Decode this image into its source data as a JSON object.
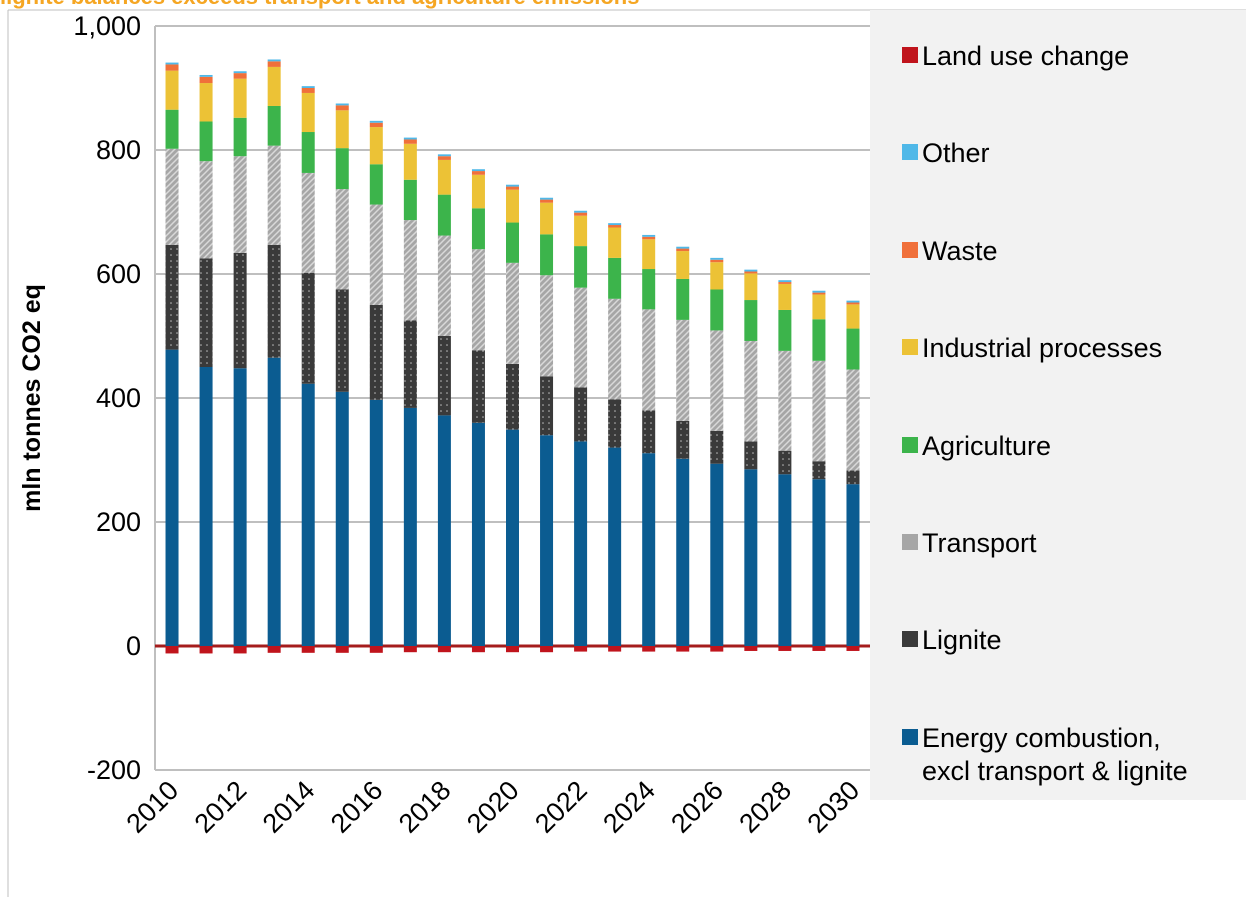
{
  "chart_data": {
    "type": "stacked_bar",
    "title": "lignite balances exceeds transport and agriculture emissions",
    "y_label": "mln tonnes CO2 eq",
    "categories": [
      "2010",
      null,
      "2012",
      null,
      "2014",
      null,
      "2016",
      null,
      "2018",
      null,
      "2020",
      null,
      "2022",
      null,
      "2024",
      null,
      "2026",
      null,
      "2028",
      null,
      "2030"
    ],
    "ylim": [
      -200,
      1000
    ],
    "yticks": [
      -200,
      0,
      200,
      400,
      600,
      800,
      {
        "value": 1000,
        "label": "1,000"
      }
    ],
    "grid": true,
    "series": [
      {
        "name": "Energy combustion,\nexcl transport & lignite",
        "color": "#0b5c91",
        "values": [
          478,
          450,
          448,
          465,
          423,
          410,
          397,
          384,
          372,
          360,
          349,
          340,
          330,
          320,
          311,
          302,
          294,
          285,
          277,
          269,
          261
        ]
      },
      {
        "name": "Lignite",
        "color": "#3a3a3a",
        "values": [
          169,
          175,
          186,
          182,
          179,
          165,
          153,
          141,
          128,
          117,
          106,
          95,
          87,
          78,
          69,
          61,
          53,
          45,
          38,
          29,
          22
        ]
      },
      {
        "name": "Transport",
        "color": "#a6a6a6",
        "values": [
          155,
          157,
          156,
          160,
          161,
          162,
          162,
          162,
          162,
          163,
          163,
          163,
          161,
          162,
          163,
          163,
          162,
          162,
          161,
          162,
          163
        ]
      },
      {
        "name": "Agriculture",
        "color": "#3cb44b",
        "values": [
          63,
          64,
          62,
          64,
          66,
          66,
          65,
          65,
          66,
          66,
          65,
          66,
          67,
          66,
          65,
          66,
          66,
          66,
          66,
          67,
          66
        ]
      },
      {
        "name": "Industrial processes",
        "color": "#ecc236",
        "values": [
          63,
          62,
          63,
          63,
          63,
          61,
          60,
          58,
          56,
          54,
          53,
          51,
          49,
          49,
          48,
          45,
          44,
          43,
          42,
          40,
          39
        ]
      },
      {
        "name": "Waste",
        "color": "#f0703a",
        "values": [
          10,
          10,
          9,
          9,
          8,
          8,
          7,
          7,
          6,
          6,
          5,
          5,
          5,
          4,
          4,
          4,
          4,
          3,
          3,
          3,
          3
        ]
      },
      {
        "name": "Other",
        "color": "#4fb8e8",
        "values": [
          3,
          3,
          3,
          3,
          3,
          3,
          3,
          3,
          3,
          3,
          3,
          3,
          3,
          3,
          3,
          3,
          3,
          3,
          3,
          3,
          3
        ]
      },
      {
        "name": "Land use change",
        "color": "#c0141c",
        "values": [
          -12,
          -12,
          -12,
          -11,
          -11,
          -11,
          -11,
          -10,
          -10,
          -10,
          -10,
          -10,
          -9,
          -9,
          -9,
          -9,
          -9,
          -8,
          -8,
          -8,
          -8
        ]
      }
    ]
  }
}
